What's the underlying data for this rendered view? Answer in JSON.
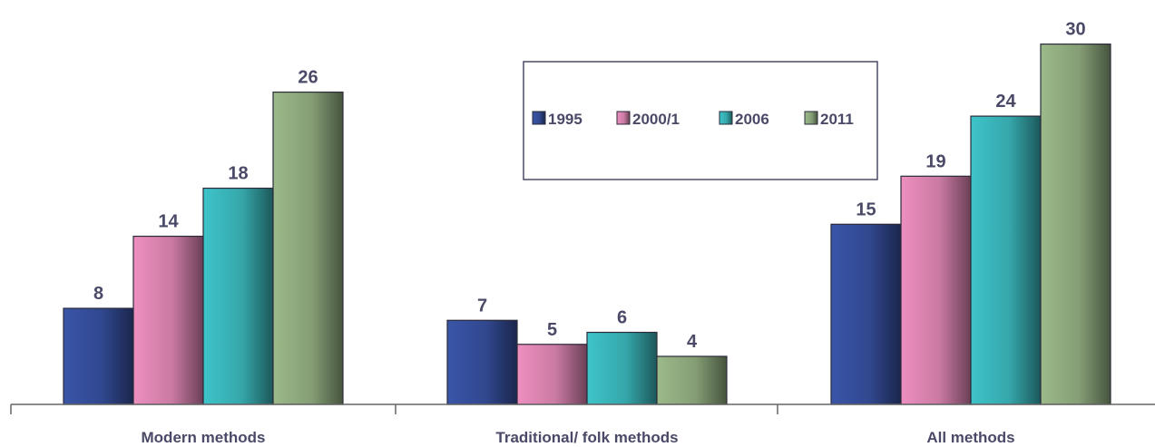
{
  "chart_data": {
    "type": "bar",
    "categories": [
      "Modern methods",
      "Traditional/ folk methods",
      "All methods"
    ],
    "series": [
      {
        "name": "1995",
        "values": [
          8,
          7,
          15
        ],
        "color": "#3a55a8"
      },
      {
        "name": "2000/1",
        "values": [
          14,
          5,
          19
        ],
        "color": "#ee8fc0"
      },
      {
        "name": "2006",
        "values": [
          18,
          6,
          24
        ],
        "color": "#3ec4c9"
      },
      {
        "name": "2011",
        "values": [
          26,
          4,
          30
        ],
        "color": "#9cba8a"
      }
    ],
    "data_labels": true,
    "grid": false,
    "legend": "boxed, top-center",
    "ylim": [
      0,
      30.5
    ]
  }
}
